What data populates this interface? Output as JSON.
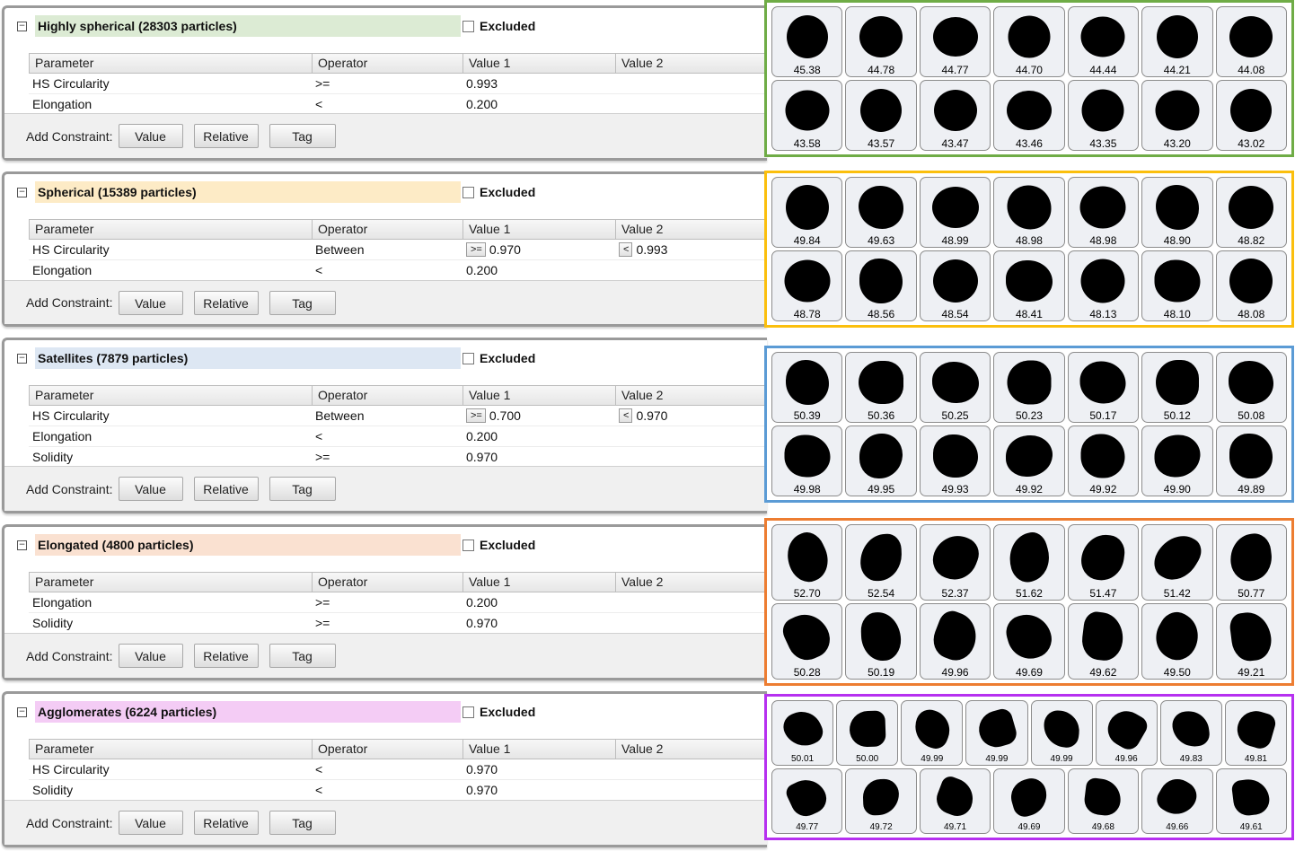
{
  "panels": [
    {
      "title": "Highly spherical (28303 particles)",
      "title_bg": "#dcebd4",
      "excluded_label": "Excluded",
      "headers": [
        "Parameter",
        "Operator",
        "Value 1",
        "Value 2"
      ],
      "rows": [
        {
          "param": "HS Circularity",
          "op": ">=",
          "v1_op": "",
          "v1": "0.993",
          "v2_op": "",
          "v2": ""
        },
        {
          "param": "Elongation",
          "op": "<",
          "v1_op": "",
          "v1": "0.200",
          "v2_op": "",
          "v2": ""
        }
      ],
      "footer": {
        "label": "Add Constraint:",
        "buttons": [
          "Value",
          "Relative",
          "Tag"
        ]
      }
    },
    {
      "title": "Spherical (15389 particles)",
      "title_bg": "#fdebc6",
      "excluded_label": "Excluded",
      "headers": [
        "Parameter",
        "Operator",
        "Value 1",
        "Value 2"
      ],
      "rows": [
        {
          "param": "HS Circularity",
          "op": "Between",
          "v1_op": ">=",
          "v1": "0.970",
          "v2_op": "<",
          "v2": "0.993"
        },
        {
          "param": "Elongation",
          "op": "<",
          "v1_op": "",
          "v1": "0.200",
          "v2_op": "",
          "v2": ""
        }
      ],
      "footer": {
        "label": "Add Constraint:",
        "buttons": [
          "Value",
          "Relative",
          "Tag"
        ]
      }
    },
    {
      "title": "Satellites (7879 particles)",
      "title_bg": "#dde7f3",
      "excluded_label": "Excluded",
      "headers": [
        "Parameter",
        "Operator",
        "Value 1",
        "Value 2"
      ],
      "rows": [
        {
          "param": "HS Circularity",
          "op": "Between",
          "v1_op": ">=",
          "v1": "0.700",
          "v2_op": "<",
          "v2": "0.970"
        },
        {
          "param": "Elongation",
          "op": "<",
          "v1_op": "",
          "v1": "0.200",
          "v2_op": "",
          "v2": ""
        },
        {
          "param": "Solidity",
          "op": ">=",
          "v1_op": "",
          "v1": "0.970",
          "v2_op": "",
          "v2": ""
        }
      ],
      "footer": {
        "label": "Add Constraint:",
        "buttons": [
          "Value",
          "Relative",
          "Tag"
        ]
      }
    },
    {
      "title": "Elongated (4800 particles)",
      "title_bg": "#fae1d1",
      "excluded_label": "Excluded",
      "headers": [
        "Parameter",
        "Operator",
        "Value 1",
        "Value 2"
      ],
      "rows": [
        {
          "param": "Elongation",
          "op": ">=",
          "v1_op": "",
          "v1": "0.200",
          "v2_op": "",
          "v2": ""
        },
        {
          "param": "Solidity",
          "op": ">=",
          "v1_op": "",
          "v1": "0.970",
          "v2_op": "",
          "v2": ""
        }
      ],
      "footer": {
        "label": "Add Constraint:",
        "buttons": [
          "Value",
          "Relative",
          "Tag"
        ]
      }
    },
    {
      "title": "Agglomerates (6224 particles)",
      "title_bg": "#f4ccf5",
      "excluded_label": "Excluded",
      "headers": [
        "Parameter",
        "Operator",
        "Value 1",
        "Value 2"
      ],
      "rows": [
        {
          "param": "HS Circularity",
          "op": "<",
          "v1_op": "",
          "v1": "0.970",
          "v2_op": "",
          "v2": ""
        },
        {
          "param": "Solidity",
          "op": "<",
          "v1_op": "",
          "v1": "0.970",
          "v2_op": "",
          "v2": ""
        }
      ],
      "footer": {
        "label": "Add Constraint:",
        "buttons": [
          "Value",
          "Relative",
          "Tag"
        ]
      }
    }
  ],
  "galleries": [
    {
      "border_color": "#6fac46",
      "row1": [
        "45.38",
        "44.78",
        "44.77",
        "44.70",
        "44.44",
        "44.21",
        "44.08"
      ],
      "row2": [
        "43.58",
        "43.57",
        "43.47",
        "43.46",
        "43.35",
        "43.20",
        "43.02"
      ]
    },
    {
      "border_color": "#fbbf0d",
      "row1": [
        "49.84",
        "49.63",
        "48.99",
        "48.98",
        "48.98",
        "48.90",
        "48.82"
      ],
      "row2": [
        "48.78",
        "48.56",
        "48.54",
        "48.41",
        "48.13",
        "48.10",
        "48.08"
      ]
    },
    {
      "border_color": "#5b9bd5",
      "row1": [
        "50.39",
        "50.36",
        "50.25",
        "50.23",
        "50.17",
        "50.12",
        "50.08"
      ],
      "row2": [
        "49.98",
        "49.95",
        "49.93",
        "49.92",
        "49.92",
        "49.90",
        "49.89"
      ]
    },
    {
      "border_color": "#ed7d31",
      "row1": [
        "52.70",
        "52.54",
        "52.37",
        "51.62",
        "51.47",
        "51.42",
        "50.77"
      ],
      "row2": [
        "50.28",
        "50.19",
        "49.96",
        "49.69",
        "49.62",
        "49.50",
        "49.21"
      ]
    },
    {
      "border_color": "#b630f0",
      "row1": [
        "50.01",
        "50.00",
        "49.99",
        "49.99",
        "49.99",
        "49.96",
        "49.83",
        "49.81"
      ],
      "row2": [
        "49.77",
        "49.72",
        "49.71",
        "49.69",
        "49.68",
        "49.66",
        "49.61"
      ]
    }
  ]
}
